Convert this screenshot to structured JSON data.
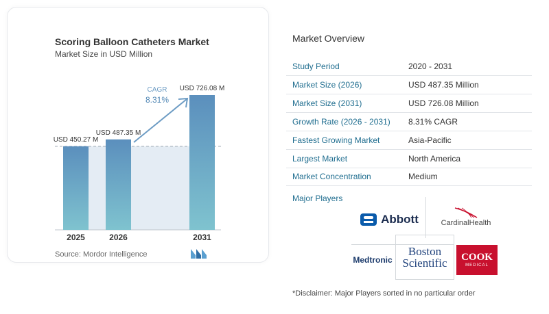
{
  "chart_data": {
    "type": "bar",
    "title": "Scoring Balloon Catheters Market",
    "subtitle": "Market Size in USD Million",
    "categories": [
      "2025",
      "2026",
      "2031"
    ],
    "values": [
      450.27,
      487.35,
      726.08
    ],
    "data_labels": [
      "USD 450.27 M",
      "USD 487.35 M",
      "USD 726.08 M"
    ],
    "annotation": {
      "label": "CAGR",
      "value": "8.31%"
    },
    "bar_color": "#5b93c0",
    "baseline_reference": 450.27
  },
  "source": "Source:  Mordor Intelligence",
  "overview": {
    "title": "Market Overview",
    "rows": [
      {
        "key": "Study Period",
        "value": "2020 - 2031"
      },
      {
        "key": "Market Size (2026)",
        "value": "USD 487.35 Million"
      },
      {
        "key": "Market Size (2031)",
        "value": "USD 726.08 Million"
      },
      {
        "key": "Growth Rate (2026 - 2031)",
        "value": "8.31% CAGR"
      },
      {
        "key": "Fastest Growing Market",
        "value": "Asia-Pacific"
      },
      {
        "key": "Largest Market",
        "value": "North America"
      },
      {
        "key": "Market Concentration",
        "value": "Medium"
      }
    ]
  },
  "players": {
    "title": "Major Players",
    "logos": {
      "abbott": "Abbott",
      "cardinal": "CardinalHealth",
      "medtronic": "Medtronic",
      "boston_line1": "Boston",
      "boston_line2": "Scientific",
      "cook_line1": "COOK",
      "cook_line2": "MEDICAL"
    }
  },
  "disclaimer": "*Disclaimer: Major Players sorted in no particular order",
  "colors": {
    "accent": "#1f6d8f",
    "bar": "#5b93c0",
    "cook_red": "#c8102e",
    "abbott_blue": "#0a5bab"
  }
}
